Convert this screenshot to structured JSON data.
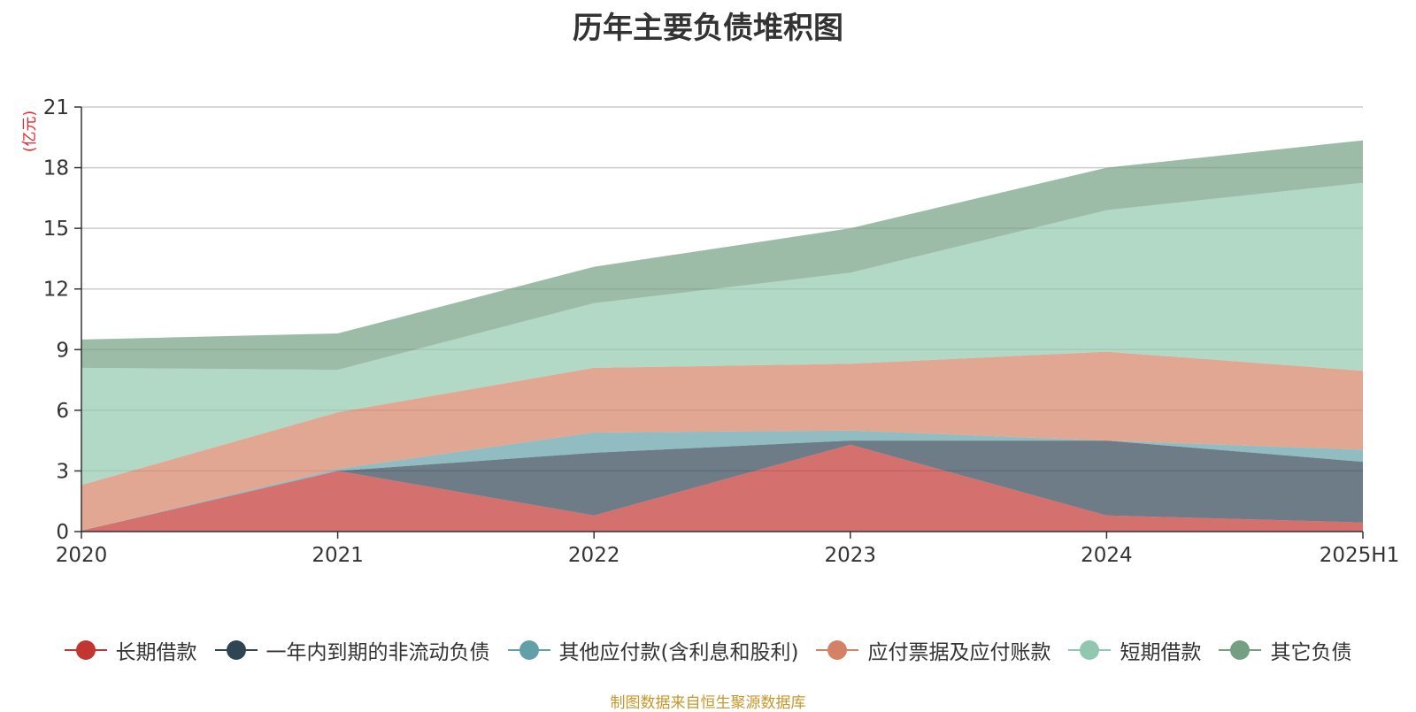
{
  "chart_data": {
    "type": "area",
    "stacked": true,
    "title": "历年主要负债堆积图",
    "unit": "(亿元)",
    "categories": [
      "2020",
      "2021",
      "2022",
      "2023",
      "2024",
      "2025H1"
    ],
    "ylim": [
      0,
      21
    ],
    "yticks": [
      0,
      3,
      6,
      9,
      12,
      15,
      18,
      21
    ],
    "grid": true,
    "legend_position": "bottom",
    "series": [
      {
        "name": "长期借款",
        "color": "#c23531",
        "values": [
          0.05,
          3.0,
          0.8,
          4.3,
          0.8,
          0.45
        ]
      },
      {
        "name": "一年内到期的非流动负债",
        "color": "#2f4554",
        "values": [
          0.0,
          0.0,
          3.1,
          0.2,
          3.7,
          3.0
        ]
      },
      {
        "name": "其他应付款(含利息和股利)",
        "color": "#61a0a8",
        "values": [
          0.0,
          0.1,
          1.0,
          0.5,
          0.0,
          0.6
        ]
      },
      {
        "name": "应付票据及应付账款",
        "color": "#d48265",
        "values": [
          2.25,
          2.8,
          3.2,
          3.3,
          4.4,
          3.9
        ]
      },
      {
        "name": "短期借款",
        "color": "#91c7ae",
        "values": [
          5.8,
          2.1,
          3.2,
          4.5,
          7.0,
          9.3
        ]
      },
      {
        "name": "其它负债",
        "color": "#749f83",
        "values": [
          1.4,
          1.8,
          1.8,
          2.2,
          2.1,
          2.1
        ]
      }
    ]
  },
  "source_note": "制图数据来自恒生聚源数据库"
}
